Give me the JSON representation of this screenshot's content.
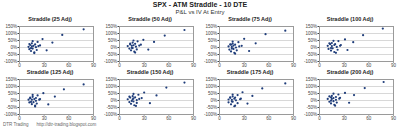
{
  "header": {
    "title": "SPX - ATM Straddle - 10 DTE",
    "subtitle": "P&L vs IV At Entry"
  },
  "footer": [
    "DTR Trading",
    "http://dtr-trading.blogspot.com"
  ],
  "chart_data": [
    {
      "type": "scatter",
      "title": "Straddle (25 Adj)",
      "color": "#1f3d7a",
      "grid": true,
      "x": [
        11,
        12,
        13,
        14,
        15,
        15,
        16,
        17,
        18,
        19,
        20,
        21,
        22,
        23,
        12,
        14,
        16,
        18,
        25,
        28,
        33,
        40,
        52,
        78
      ],
      "values": [
        5,
        -12,
        18,
        -25,
        8,
        30,
        -8,
        12,
        -35,
        22,
        2,
        -18,
        40,
        10,
        25,
        -5,
        45,
        -40,
        15,
        60,
        -20,
        35,
        90,
        130
      ],
      "xlim": [
        0,
        90
      ],
      "xticks": [
        0,
        30,
        60,
        90
      ],
      "ylim": [
        -100,
        150
      ],
      "yticks": [
        {
          "value": -100,
          "label": "-100%"
        },
        {
          "value": -50,
          "label": "-50%"
        },
        {
          "value": 0,
          "label": "0%"
        },
        {
          "value": 50,
          "label": "50%"
        },
        {
          "value": 100,
          "label": "100%"
        },
        {
          "value": 150,
          "label": "150%"
        }
      ]
    },
    {
      "type": "scatter",
      "title": "Straddle (50 Adj)",
      "color": "#1f3d7a",
      "grid": true,
      "x": [
        10,
        12,
        13,
        14,
        15,
        16,
        16,
        17,
        18,
        19,
        20,
        21,
        22,
        24,
        13,
        15,
        17,
        19,
        26,
        29,
        35,
        42,
        55,
        79
      ],
      "values": [
        10,
        -8,
        22,
        -20,
        12,
        35,
        -4,
        16,
        -30,
        26,
        6,
        -14,
        44,
        14,
        28,
        -2,
        50,
        -36,
        20,
        55,
        -15,
        40,
        85,
        125
      ],
      "xlim": [
        0,
        90
      ],
      "xticks": [
        0,
        30,
        60,
        90
      ],
      "ylim": [
        -100,
        150
      ],
      "yticks": [
        {
          "value": -100,
          "label": "-100%"
        },
        {
          "value": -50,
          "label": "-50%"
        },
        {
          "value": 0,
          "label": "0%"
        },
        {
          "value": 50,
          "label": "50%"
        },
        {
          "value": 100,
          "label": "100%"
        },
        {
          "value": 150,
          "label": "150%"
        }
      ]
    },
    {
      "type": "scatter",
      "title": "Straddle (75 Adj)",
      "color": "#1f3d7a",
      "grid": true,
      "x": [
        11,
        12,
        14,
        14,
        15,
        16,
        17,
        17,
        18,
        19,
        20,
        21,
        23,
        24,
        13,
        15,
        16,
        19,
        27,
        30,
        36,
        44,
        56,
        80
      ],
      "values": [
        8,
        -15,
        20,
        -28,
        4,
        28,
        -10,
        14,
        -38,
        20,
        0,
        -20,
        38,
        8,
        22,
        -8,
        42,
        -44,
        12,
        62,
        -25,
        30,
        95,
        120
      ],
      "xlim": [
        0,
        90
      ],
      "xticks": [
        0,
        30,
        60,
        90
      ],
      "ylim": [
        -100,
        150
      ],
      "yticks": [
        {
          "value": -100,
          "label": "-100%"
        },
        {
          "value": -50,
          "label": "-50%"
        },
        {
          "value": 0,
          "label": "0%"
        },
        {
          "value": 50,
          "label": "50%"
        },
        {
          "value": 100,
          "label": "100%"
        },
        {
          "value": 150,
          "label": "150%"
        }
      ]
    },
    {
      "type": "scatter",
      "title": "Straddle (100 Adj)",
      "color": "#1f3d7a",
      "grid": true,
      "x": [
        10,
        11,
        13,
        14,
        15,
        15,
        16,
        18,
        18,
        19,
        21,
        22,
        23,
        25,
        12,
        14,
        17,
        20,
        26,
        31,
        34,
        41,
        53,
        77
      ],
      "values": [
        12,
        -10,
        24,
        -22,
        10,
        32,
        -6,
        18,
        -32,
        24,
        4,
        -16,
        46,
        12,
        30,
        -4,
        48,
        -38,
        18,
        58,
        -18,
        38,
        88,
        135
      ],
      "xlim": [
        0,
        90
      ],
      "xticks": [
        0,
        30,
        60,
        90
      ],
      "ylim": [
        -100,
        150
      ],
      "yticks": [
        {
          "value": -100,
          "label": "-100%"
        },
        {
          "value": -50,
          "label": "-50%"
        },
        {
          "value": 0,
          "label": "0%"
        },
        {
          "value": 50,
          "label": "50%"
        },
        {
          "value": 100,
          "label": "100%"
        },
        {
          "value": 150,
          "label": "150%"
        }
      ]
    },
    {
      "type": "scatter",
      "title": "Straddle (125 Adj)",
      "color": "#1f3d7a",
      "grid": true,
      "x": [
        11,
        12,
        13,
        15,
        15,
        16,
        17,
        18,
        19,
        20,
        20,
        21,
        22,
        24,
        13,
        14,
        16,
        19,
        25,
        29,
        35,
        43,
        54,
        78
      ],
      "values": [
        6,
        -14,
        16,
        -26,
        6,
        26,
        -12,
        10,
        -36,
        18,
        -2,
        -22,
        36,
        6,
        20,
        -10,
        40,
        -42,
        10,
        52,
        -28,
        28,
        80,
        115
      ],
      "xlim": [
        0,
        90
      ],
      "xticks": [
        0,
        30,
        60,
        90
      ],
      "ylim": [
        -100,
        150
      ],
      "yticks": [
        {
          "value": -100,
          "label": "-100%"
        },
        {
          "value": -50,
          "label": "-50%"
        },
        {
          "value": 0,
          "label": "0%"
        },
        {
          "value": 50,
          "label": "50%"
        },
        {
          "value": 100,
          "label": "100%"
        },
        {
          "value": 150,
          "label": "150%"
        }
      ]
    },
    {
      "type": "scatter",
      "title": "Straddle (150 Adj)",
      "color": "#1f3d7a",
      "grid": true,
      "x": [
        10,
        12,
        13,
        14,
        16,
        16,
        17,
        17,
        18,
        19,
        21,
        21,
        23,
        24,
        12,
        15,
        17,
        20,
        27,
        30,
        37,
        45,
        57,
        79
      ],
      "values": [
        9,
        -11,
        21,
        -24,
        9,
        31,
        -7,
        15,
        -34,
        23,
        3,
        -17,
        41,
        11,
        27,
        -3,
        47,
        -39,
        17,
        57,
        -19,
        36,
        92,
        128
      ],
      "xlim": [
        0,
        90
      ],
      "xticks": [
        0,
        30,
        60,
        90
      ],
      "ylim": [
        -100,
        150
      ],
      "yticks": [
        {
          "value": -100,
          "label": "-100%"
        },
        {
          "value": -50,
          "label": "-50%"
        },
        {
          "value": 0,
          "label": "0%"
        },
        {
          "value": 50,
          "label": "50%"
        },
        {
          "value": 100,
          "label": "100%"
        },
        {
          "value": 150,
          "label": "150%"
        }
      ]
    },
    {
      "type": "scatter",
      "title": "Straddle (175 Adj)",
      "color": "#1f3d7a",
      "grid": true,
      "x": [
        11,
        11,
        13,
        14,
        15,
        16,
        16,
        18,
        19,
        19,
        20,
        22,
        22,
        25,
        13,
        15,
        16,
        18,
        26,
        28,
        34,
        40,
        52,
        80
      ],
      "values": [
        7,
        -13,
        19,
        -27,
        5,
        29,
        -9,
        13,
        -37,
        21,
        1,
        -19,
        39,
        9,
        23,
        -7,
        43,
        -41,
        13,
        59,
        -22,
        33,
        86,
        122
      ],
      "xlim": [
        0,
        90
      ],
      "xticks": [
        0,
        30,
        60,
        90
      ],
      "ylim": [
        -100,
        150
      ],
      "yticks": [
        {
          "value": -100,
          "label": "-100%"
        },
        {
          "value": -50,
          "label": "-50%"
        },
        {
          "value": 0,
          "label": "0%"
        },
        {
          "value": 50,
          "label": "50%"
        },
        {
          "value": 100,
          "label": "100%"
        },
        {
          "value": 150,
          "label": "150%"
        }
      ]
    },
    {
      "type": "scatter",
      "title": "Straddle (200 Adj)",
      "color": "#1f3d7a",
      "grid": true,
      "x": [
        10,
        12,
        14,
        14,
        15,
        15,
        17,
        17,
        18,
        20,
        20,
        21,
        23,
        24,
        12,
        14,
        17,
        19,
        25,
        31,
        36,
        42,
        55,
        78
      ],
      "values": [
        11,
        -9,
        23,
        -21,
        11,
        33,
        -5,
        17,
        -31,
        25,
        5,
        -15,
        43,
        13,
        29,
        -1,
        49,
        -37,
        19,
        54,
        -16,
        39,
        89,
        132
      ],
      "xlim": [
        0,
        90
      ],
      "xticks": [
        0,
        30,
        60,
        90
      ],
      "ylim": [
        -100,
        150
      ],
      "yticks": [
        {
          "value": -100,
          "label": "-100%"
        },
        {
          "value": -50,
          "label": "-50%"
        },
        {
          "value": 0,
          "label": "0%"
        },
        {
          "value": 50,
          "label": "50%"
        },
        {
          "value": 100,
          "label": "100%"
        },
        {
          "value": 150,
          "label": "150%"
        }
      ]
    }
  ]
}
